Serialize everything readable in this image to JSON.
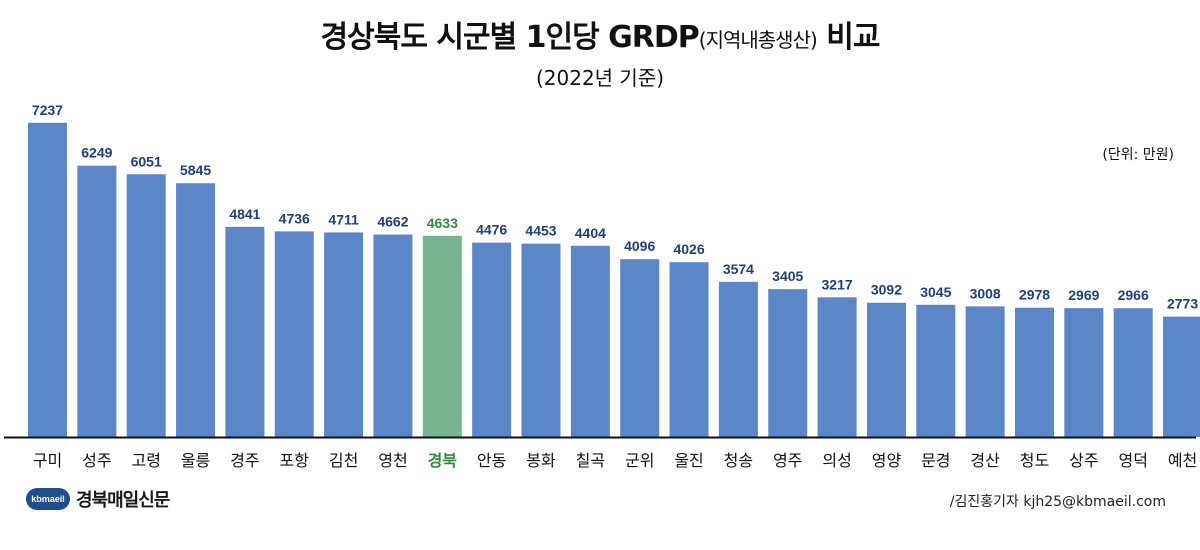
{
  "header": {
    "title_main": "경상북도 시군별 1인당 GRDP",
    "title_paren": "(지역내총생산)",
    "title_end": " 비교",
    "subtitle": "(2022년 기준)",
    "unit": "(단위: 만원)"
  },
  "footer": {
    "logo_badge": "kbmaeil",
    "logo_text": "경북매일신문",
    "credit": "/김진홍기자 kjh25@kbmaeil.com"
  },
  "colors": {
    "bar": "#5b87c9",
    "highlight_bar": "#77b48f",
    "value_label": "#1e3f7a",
    "highlight_label": "#2f8a3c"
  },
  "chart_data": {
    "type": "bar",
    "categories": [
      "구미",
      "성주",
      "고령",
      "울릉",
      "경주",
      "포항",
      "김천",
      "영천",
      "경북",
      "안동",
      "봉화",
      "칠곡",
      "군위",
      "울진",
      "청송",
      "영주",
      "의성",
      "영양",
      "문경",
      "경산",
      "청도",
      "상주",
      "영덕",
      "예천"
    ],
    "values": [
      7237,
      6249,
      6051,
      5845,
      4841,
      4736,
      4711,
      4662,
      4633,
      4476,
      4453,
      4404,
      4096,
      4026,
      3574,
      3405,
      3217,
      3092,
      3045,
      3008,
      2978,
      2969,
      2966,
      2773
    ],
    "highlight": "경북",
    "ylim": [
      0,
      7600
    ],
    "grid": false
  }
}
